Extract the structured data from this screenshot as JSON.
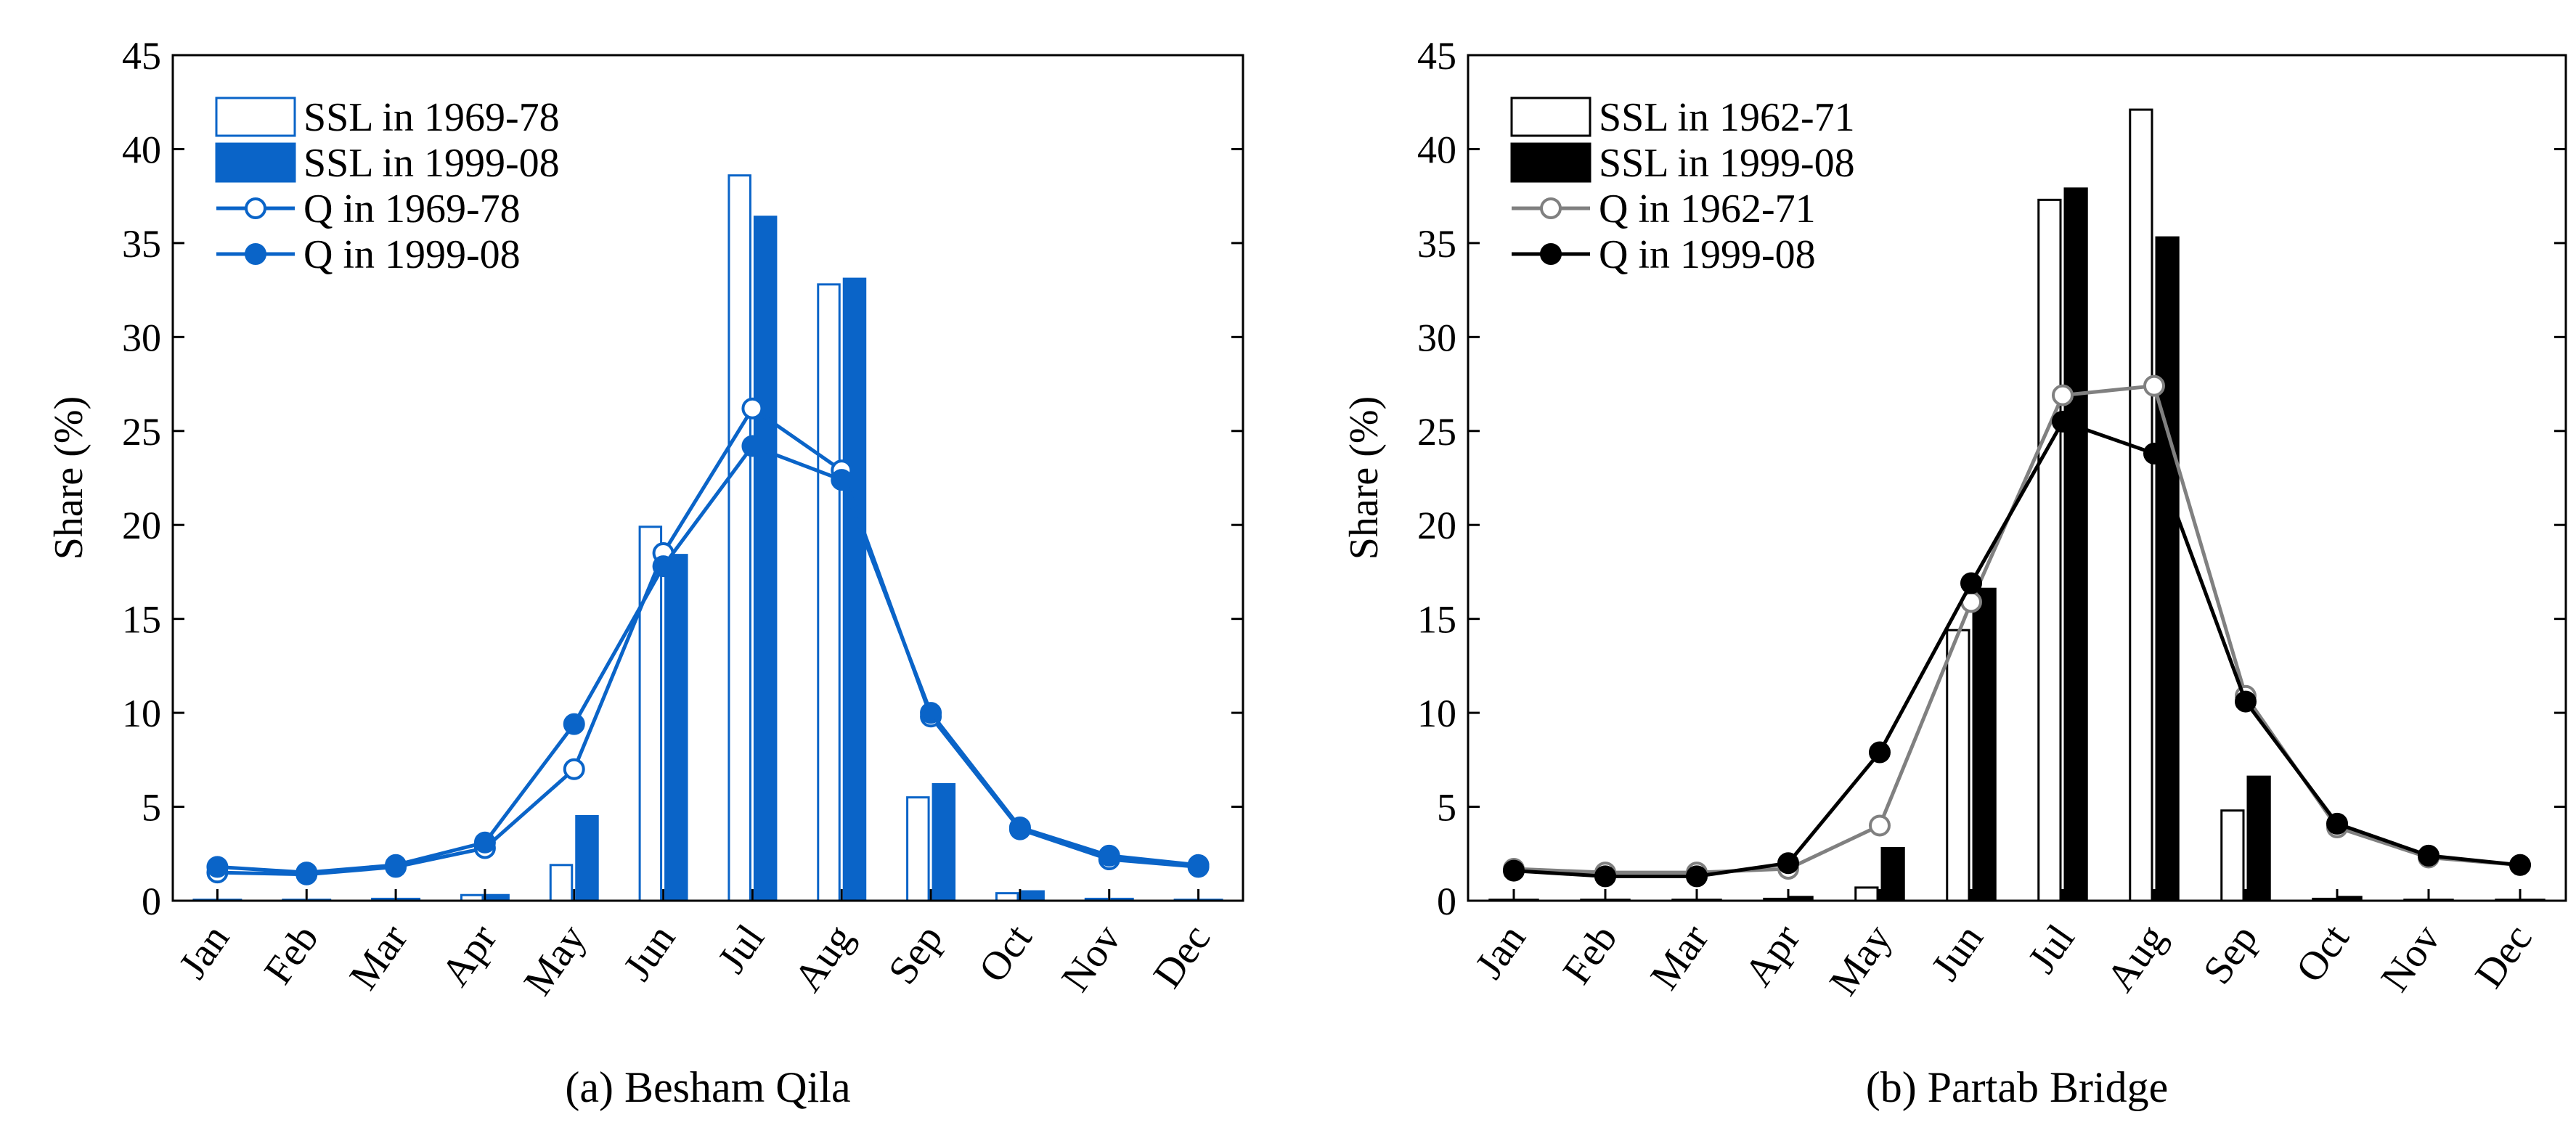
{
  "colors": {
    "blue": "#0a64c8",
    "black": "#000000",
    "grey": "#808080",
    "white": "#ffffff"
  },
  "chart_data": [
    {
      "type": "bar",
      "id": "a",
      "caption": "(a) Besham Qila",
      "title": "",
      "xlabel": "",
      "ylabel": "Share (%)",
      "ylim": [
        0,
        45
      ],
      "yticks": [
        0,
        5,
        10,
        15,
        20,
        25,
        30,
        35,
        40,
        45
      ],
      "grid": false,
      "legend_position": "top-left",
      "categories": [
        "Jan",
        "Feb",
        "Mar",
        "Apr",
        "May",
        "Jun",
        "Jul",
        "Aug",
        "Sep",
        "Oct",
        "Nov",
        "Dec"
      ],
      "series": [
        {
          "name": "SSL in 1969-78",
          "kind": "bar-open",
          "color": "#0a64c8",
          "values": [
            0.05,
            0.05,
            0.1,
            0.3,
            1.9,
            19.9,
            38.6,
            32.8,
            5.5,
            0.4,
            0.1,
            0.05
          ]
        },
        {
          "name": "SSL in 1999-08",
          "kind": "bar-filled",
          "color": "#0a64c8",
          "values": [
            0.05,
            0.05,
            0.1,
            0.3,
            4.5,
            18.4,
            36.4,
            33.1,
            6.2,
            0.5,
            0.1,
            0.05
          ]
        },
        {
          "name": "Q in 1969-78",
          "kind": "line-open",
          "color": "#0a64c8",
          "values": [
            1.5,
            1.4,
            1.8,
            2.8,
            7.0,
            18.5,
            26.2,
            22.9,
            9.8,
            3.8,
            2.2,
            1.8
          ]
        },
        {
          "name": "Q in 1999-08",
          "kind": "line-filled",
          "color": "#0a64c8",
          "values": [
            1.8,
            1.5,
            1.9,
            3.1,
            9.4,
            17.8,
            24.2,
            22.4,
            10.0,
            3.9,
            2.4,
            1.9
          ]
        }
      ]
    },
    {
      "type": "bar",
      "id": "b",
      "caption": "(b) Partab Bridge",
      "title": "",
      "xlabel": "",
      "ylabel": "Share (%)",
      "ylim": [
        0,
        45
      ],
      "yticks": [
        0,
        5,
        10,
        15,
        20,
        25,
        30,
        35,
        40,
        45
      ],
      "grid": false,
      "legend_position": "top-left",
      "categories": [
        "Jan",
        "Feb",
        "Mar",
        "Apr",
        "May",
        "Jun",
        "Jul",
        "Aug",
        "Sep",
        "Oct",
        "Nov",
        "Dec"
      ],
      "series": [
        {
          "name": "SSL in 1962-71",
          "kind": "bar-open",
          "color": "#000000",
          "values": [
            0.05,
            0.05,
            0.05,
            0.1,
            0.7,
            14.4,
            37.3,
            42.1,
            4.8,
            0.1,
            0.05,
            0.05
          ]
        },
        {
          "name": "SSL in 1999-08",
          "kind": "bar-filled",
          "color": "#000000",
          "values": [
            0.05,
            0.05,
            0.05,
            0.2,
            2.8,
            16.6,
            37.9,
            35.3,
            6.6,
            0.2,
            0.05,
            0.05
          ]
        },
        {
          "name": "Q in 1962-71",
          "kind": "line-open",
          "color": "#808080",
          "values": [
            1.7,
            1.5,
            1.5,
            1.7,
            4.0,
            15.9,
            26.9,
            27.4,
            10.9,
            3.9,
            2.3,
            1.9
          ]
        },
        {
          "name": "Q in 1999-08",
          "kind": "line-filled",
          "color": "#000000",
          "values": [
            1.6,
            1.3,
            1.3,
            2.0,
            7.9,
            16.9,
            25.5,
            23.8,
            10.6,
            4.1,
            2.4,
            1.9
          ]
        }
      ]
    }
  ]
}
